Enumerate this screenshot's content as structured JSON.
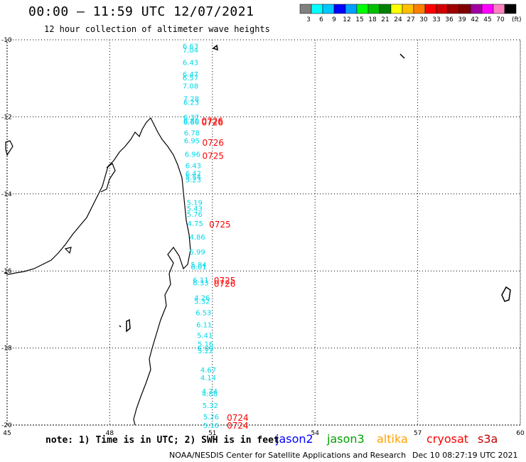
{
  "title": "00:00 – 11:59 UTC 12/07/2021",
  "subtitle": "12 hour collection of altimeter wave heights",
  "legend": {
    "unit": "(ft)",
    "colors": [
      "#808080",
      "#00ffff",
      "#00c8ff",
      "#0000ff",
      "#00a0ff",
      "#00ff00",
      "#00c000",
      "#008000",
      "#ffff00",
      "#ffc000",
      "#ff8000",
      "#ff0000",
      "#d00000",
      "#a00000",
      "#800000",
      "#a000a0",
      "#ff00ff",
      "#ff80c0",
      "#000000"
    ],
    "ticks": [
      "3",
      "6",
      "9",
      "12",
      "15",
      "18",
      "21",
      "24",
      "27",
      "30",
      "33",
      "36",
      "39",
      "42",
      "45",
      "70"
    ]
  },
  "map": {
    "lon_ticks": [
      "45",
      "48",
      "51",
      "54",
      "57",
      "60"
    ],
    "lat_ticks": [
      "-10",
      "-12",
      "-14",
      "-16",
      "-18",
      "-20"
    ],
    "lon_range": [
      45,
      60
    ],
    "lat_range": [
      -20,
      -10
    ],
    "grid": true
  },
  "wave_heights": [
    {
      "v": "6.63",
      "lon": 50.36,
      "lat": -10.16
    },
    {
      "v": "7.04",
      "lon": 50.36,
      "lat": -10.26
    },
    {
      "v": "6.43",
      "lon": 50.36,
      "lat": -10.58
    },
    {
      "v": "6.47",
      "lon": 50.36,
      "lat": -10.89
    },
    {
      "v": "6.57",
      "lon": 50.36,
      "lat": -10.98
    },
    {
      "v": "7.08",
      "lon": 50.36,
      "lat": -11.19
    },
    {
      "v": "7.28",
      "lon": 50.38,
      "lat": -11.52
    },
    {
      "v": "6.23",
      "lon": 50.38,
      "lat": -11.61
    },
    {
      "v": "6.37",
      "lon": 50.38,
      "lat": -12.0
    },
    {
      "v": "6.80",
      "lon": 50.38,
      "lat": -12.09
    },
    {
      "v": "6.66",
      "lon": 50.38,
      "lat": -12.13
    },
    {
      "v": "6.78",
      "lon": 50.4,
      "lat": -12.41
    },
    {
      "v": "6.95",
      "lon": 50.4,
      "lat": -12.61
    },
    {
      "v": "6.96",
      "lon": 50.42,
      "lat": -12.96
    },
    {
      "v": "6.43",
      "lon": 50.44,
      "lat": -13.26
    },
    {
      "v": "6.42",
      "lon": 50.44,
      "lat": -13.46
    },
    {
      "v": "5.54",
      "lon": 50.44,
      "lat": -13.55
    },
    {
      "v": "5.23",
      "lon": 50.44,
      "lat": -13.63
    },
    {
      "v": "5.19",
      "lon": 50.48,
      "lat": -14.22
    },
    {
      "v": "5.43",
      "lon": 50.48,
      "lat": -14.37
    },
    {
      "v": "5.76",
      "lon": 50.48,
      "lat": -14.52
    },
    {
      "v": "4.75",
      "lon": 50.5,
      "lat": -14.76
    },
    {
      "v": "4.86",
      "lon": 50.56,
      "lat": -15.11
    },
    {
      "v": "5.99",
      "lon": 50.56,
      "lat": -15.5
    },
    {
      "v": "5.84",
      "lon": 50.6,
      "lat": -15.83
    },
    {
      "v": "6.01",
      "lon": 50.6,
      "lat": -15.89
    },
    {
      "v": "6.11",
      "lon": 50.66,
      "lat": -16.23
    },
    {
      "v": "6.33",
      "lon": 50.66,
      "lat": -16.3
    },
    {
      "v": "4.26",
      "lon": 50.7,
      "lat": -16.69
    },
    {
      "v": "5.32",
      "lon": 50.7,
      "lat": -16.78
    },
    {
      "v": "6.53",
      "lon": 50.74,
      "lat": -17.08
    },
    {
      "v": "6.11",
      "lon": 50.76,
      "lat": -17.39
    },
    {
      "v": "5.41",
      "lon": 50.78,
      "lat": -17.67
    },
    {
      "v": "5.16",
      "lon": 50.8,
      "lat": -17.89
    },
    {
      "v": "5.09",
      "lon": 50.8,
      "lat": -18.0
    },
    {
      "v": "5.22",
      "lon": 50.8,
      "lat": -18.06
    },
    {
      "v": "4.67",
      "lon": 50.88,
      "lat": -18.56
    },
    {
      "v": "4.14",
      "lon": 50.88,
      "lat": -18.76
    },
    {
      "v": "4.74",
      "lon": 50.92,
      "lat": -19.11
    },
    {
      "v": "4.88",
      "lon": 50.92,
      "lat": -19.18
    },
    {
      "v": "5.32",
      "lon": 50.94,
      "lat": -19.48
    },
    {
      "v": "5.26",
      "lon": 50.96,
      "lat": -19.78
    },
    {
      "v": "5.16",
      "lon": 50.96,
      "lat": -20.0
    }
  ],
  "times": [
    {
      "v": "0726",
      "lon": 51.0,
      "lat": -12.09
    },
    {
      "v": "0726",
      "lon": 51.0,
      "lat": -12.13
    },
    {
      "v": "0726",
      "lon": 51.02,
      "lat": -12.66
    },
    {
      "v": "0725",
      "lon": 51.02,
      "lat": -13.0
    },
    {
      "v": "0725",
      "lon": 51.22,
      "lat": -14.78
    },
    {
      "v": "0725",
      "lon": 51.36,
      "lat": -16.24
    },
    {
      "v": "0726",
      "lon": 51.36,
      "lat": -16.32
    },
    {
      "v": "0724",
      "lon": 51.74,
      "lat": -19.8
    },
    {
      "v": "0724",
      "lon": 51.74,
      "lat": -20.0
    }
  ],
  "footer": {
    "note": "note: 1) Time is in UTC; 2) SWH is in feet",
    "credit": "NOAA/NESDIS Center for Satellite Applications and Research",
    "timestamp": "Dec 10 08:27:19 UTC 2021",
    "satellites": [
      {
        "name": "jason2",
        "color": "#0000ff"
      },
      {
        "name": "jason3",
        "color": "#00a000"
      },
      {
        "name": "altika",
        "color": "#ffa000"
      },
      {
        "name": "cryosat",
        "color": "#ff0000"
      },
      {
        "name": "s3a",
        "color": "#c00000"
      }
    ]
  }
}
